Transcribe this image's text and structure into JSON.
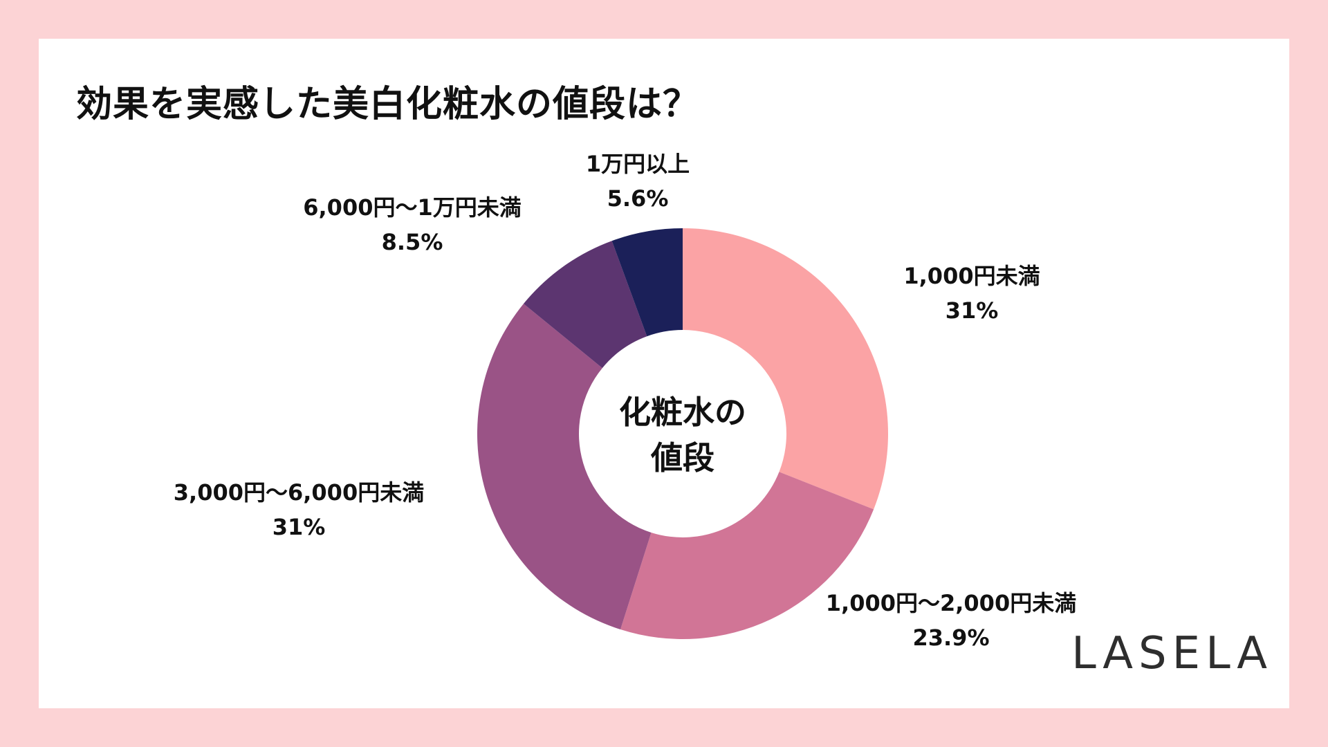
{
  "title": "効果を実感した美白化粧水の値段は？",
  "logo": "LASELA",
  "colors": {
    "background": "#FCD3D5",
    "card": "#FFFFFF"
  },
  "chart_data": {
    "type": "pie",
    "subtype": "donut",
    "title": "効果を実感した美白化粧水の値段は？",
    "center_label": [
      "化粧水の",
      "値段"
    ],
    "slices": [
      {
        "label": "1,000円未満",
        "value": 31,
        "value_label": "31%",
        "color": "#FBA3A5"
      },
      {
        "label": "1,000円〜2,000円未満",
        "value": 23.9,
        "value_label": "23.9%",
        "color": "#D17596"
      },
      {
        "label": "3,000円〜6,000円未満",
        "value": 31,
        "value_label": "31%",
        "color": "#9A5386"
      },
      {
        "label": "6,000円〜1万円未満",
        "value": 8.5,
        "value_label": "8.5%",
        "color": "#5C3570"
      },
      {
        "label": "1万円以上",
        "value": 5.6,
        "value_label": "5.6%",
        "color": "#1B2059"
      }
    ]
  }
}
